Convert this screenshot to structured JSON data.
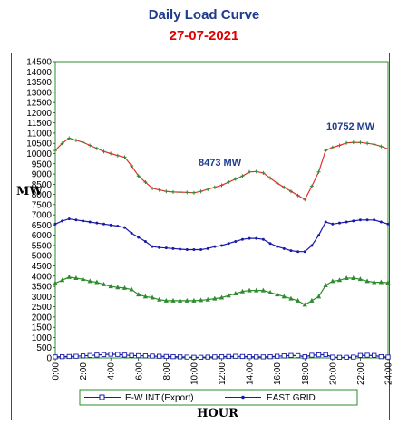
{
  "header": {
    "title": "Daily Load Curve",
    "date": "27-07-2021"
  },
  "chart_data": {
    "type": "line",
    "xlabel": "HOUR",
    "ylabel": "MW",
    "ylim": [
      0,
      14500
    ],
    "xlim": [
      0,
      24
    ],
    "y_ticks": [
      0,
      500,
      1000,
      1500,
      2000,
      2500,
      3000,
      3500,
      4000,
      4500,
      5000,
      5500,
      6000,
      6500,
      7000,
      7500,
      8000,
      8500,
      9000,
      9500,
      10000,
      10500,
      11000,
      11500,
      12000,
      12500,
      13000,
      13500,
      14000,
      14500
    ],
    "x_ticks": [
      "0:00",
      "2:00",
      "4:00",
      "6:00",
      "8:00",
      "10:00",
      "12:00",
      "14:00",
      "16:00",
      "18:00",
      "20:00",
      "22:00",
      "24:00"
    ],
    "x": [
      0,
      0.5,
      1,
      1.5,
      2,
      2.5,
      3,
      3.5,
      4,
      4.5,
      5,
      5.5,
      6,
      6.5,
      7,
      7.5,
      8,
      8.5,
      9,
      9.5,
      10,
      10.5,
      11,
      11.5,
      12,
      12.5,
      13,
      13.5,
      14,
      14.5,
      15,
      15.5,
      16,
      16.5,
      17,
      17.5,
      18,
      18.5,
      19,
      19.5,
      20,
      20.5,
      21,
      21.5,
      22,
      22.5,
      23,
      23.5,
      24
    ],
    "series": [
      {
        "name": "",
        "color": "#e03030",
        "marker_color": "#2e8b2e",
        "values": [
          10150,
          10500,
          10752,
          10650,
          10550,
          10400,
          10250,
          10100,
          10000,
          9900,
          9820,
          9400,
          8900,
          8600,
          8300,
          8220,
          8150,
          8120,
          8110,
          8100,
          8080,
          8150,
          8250,
          8350,
          8450,
          8600,
          8750,
          8900,
          9100,
          9120,
          9050,
          8800,
          8550,
          8350,
          8150,
          7950,
          7750,
          8400,
          9100,
          10150,
          10300,
          10400,
          10520,
          10550,
          10540,
          10500,
          10450,
          10350,
          10220
        ]
      },
      {
        "name": "EAST GRID",
        "color": "#1a1aa8",
        "marker": "dot",
        "values": [
          6550,
          6700,
          6800,
          6750,
          6700,
          6650,
          6600,
          6550,
          6500,
          6450,
          6380,
          6100,
          5900,
          5700,
          5450,
          5400,
          5380,
          5350,
          5320,
          5300,
          5300,
          5300,
          5350,
          5450,
          5500,
          5600,
          5700,
          5800,
          5850,
          5850,
          5800,
          5600,
          5450,
          5350,
          5250,
          5200,
          5200,
          5500,
          6000,
          6650,
          6550,
          6600,
          6650,
          6700,
          6750,
          6750,
          6750,
          6650,
          6550
        ]
      },
      {
        "name": "",
        "color": "#2e8b2e",
        "marker": "triangle",
        "values": [
          3650,
          3800,
          3950,
          3900,
          3850,
          3750,
          3700,
          3600,
          3500,
          3450,
          3420,
          3350,
          3100,
          3000,
          2950,
          2850,
          2800,
          2800,
          2800,
          2800,
          2800,
          2820,
          2850,
          2900,
          2950,
          3050,
          3150,
          3250,
          3300,
          3300,
          3300,
          3200,
          3100,
          3000,
          2900,
          2800,
          2600,
          2800,
          3000,
          3550,
          3750,
          3800,
          3900,
          3900,
          3850,
          3750,
          3700,
          3700,
          3680
        ]
      },
      {
        "name": "E-W INT.(Export)",
        "color": "#1a1aa8",
        "marker": "square",
        "values": [
          50,
          60,
          70,
          80,
          100,
          120,
          140,
          160,
          180,
          170,
          140,
          120,
          110,
          100,
          90,
          80,
          70,
          60,
          50,
          40,
          30,
          30,
          40,
          50,
          60,
          70,
          80,
          70,
          60,
          50,
          50,
          60,
          80,
          100,
          120,
          110,
          60,
          130,
          150,
          160,
          40,
          30,
          30,
          40,
          120,
          130,
          120,
          60,
          40
        ]
      }
    ],
    "annotations": [
      "8473 MW",
      "10752 MW"
    ],
    "legend": {
      "position": "bottom",
      "entries": [
        "E-W INT.(Export)",
        "EAST GRID"
      ]
    }
  }
}
